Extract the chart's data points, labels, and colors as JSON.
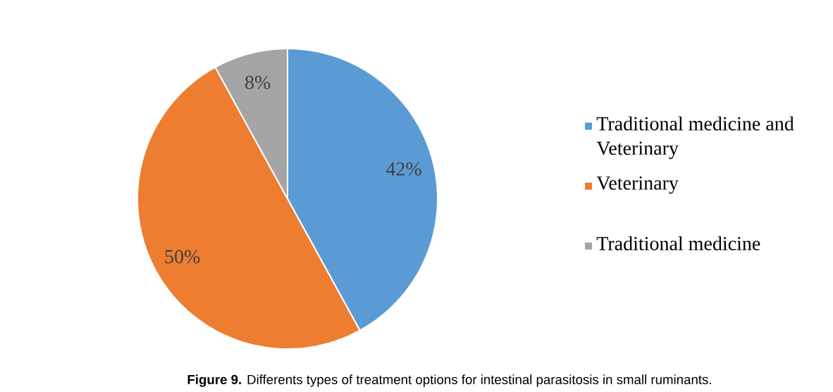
{
  "chart_data": {
    "type": "pie",
    "title": "**Figure 9.** Differents types of treatment options for intestinal parasitosis in small ruminants.",
    "categories": [
      "Traditional medicine and Veterinary",
      "Veterinary",
      "Traditional medicine"
    ],
    "values": [
      42,
      50,
      8
    ],
    "colors": [
      "#5b9bd5",
      "#ed7d31",
      "#a5a5a5"
    ],
    "value_labels": [
      "42%",
      "50%",
      "8%"
    ],
    "legend": "right"
  }
}
